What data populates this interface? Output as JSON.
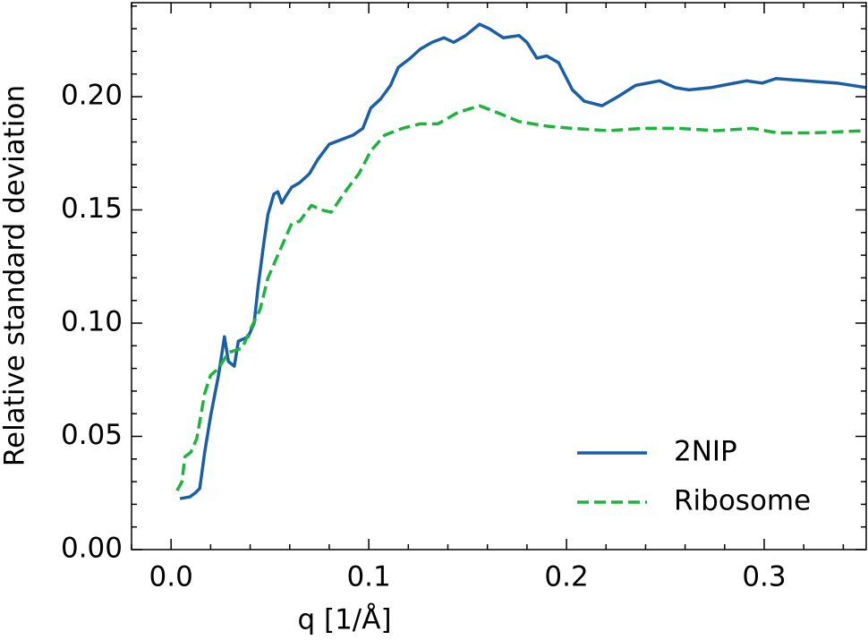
{
  "chart_data": {
    "type": "line",
    "xlabel": "q [1/Å]",
    "ylabel": "Relative standard deviation",
    "xlim": [
      -0.02,
      0.3516
    ],
    "ylim": [
      0,
      0.2415
    ],
    "xticks": [
      {
        "value": 0,
        "label": "0.0"
      },
      0.1,
      0.2,
      0.3
    ],
    "yticks": [
      {
        "value": 0,
        "label": "0.00"
      },
      0.05,
      {
        "value": 0.1,
        "label": "0.10"
      },
      0.15,
      {
        "value": 0.2,
        "label": "0.20"
      }
    ],
    "xminorticks": [
      -0.02,
      0.02,
      0.04,
      0.06,
      0.08,
      0.12,
      0.14,
      0.16,
      0.18,
      0.22,
      0.24,
      0.26,
      0.28,
      0.32,
      0.34
    ],
    "yminorticks": [
      0.01,
      0.02,
      0.03,
      0.04,
      0.06,
      0.07,
      0.08,
      0.09,
      0.11,
      0.12,
      0.13,
      0.14,
      0.16,
      0.17,
      0.18,
      0.19,
      0.21,
      0.22,
      0.23,
      0.24
    ],
    "legend": "lower right",
    "series": [
      {
        "name": "2NIP",
        "color": "#1a5ea8",
        "dash": "solid",
        "x": [
          0.0045,
          0.0095,
          0.0122,
          0.0145,
          0.017,
          0.02,
          0.024,
          0.027,
          0.029,
          0.032,
          0.034,
          0.039,
          0.042,
          0.044,
          0.047,
          0.049,
          0.052,
          0.054,
          0.056,
          0.058,
          0.061,
          0.065,
          0.07,
          0.074,
          0.08,
          0.086,
          0.092,
          0.097,
          0.101,
          0.106,
          0.111,
          0.115,
          0.121,
          0.126,
          0.132,
          0.138,
          0.143,
          0.149,
          0.156,
          0.161,
          0.168,
          0.176,
          0.18,
          0.185,
          0.19,
          0.196,
          0.203,
          0.209,
          0.218,
          0.226,
          0.235,
          0.247,
          0.255,
          0.262,
          0.273,
          0.279,
          0.291,
          0.299,
          0.306,
          0.321,
          0.337,
          0.3516
        ],
        "values": [
          0.0225,
          0.0233,
          0.025,
          0.027,
          0.043,
          0.059,
          0.077,
          0.094,
          0.083,
          0.081,
          0.092,
          0.094,
          0.1,
          0.116,
          0.136,
          0.148,
          0.157,
          0.158,
          0.153,
          0.156,
          0.16,
          0.162,
          0.166,
          0.172,
          0.179,
          0.181,
          0.183,
          0.186,
          0.195,
          0.199,
          0.205,
          0.213,
          0.217,
          0.221,
          0.224,
          0.226,
          0.224,
          0.227,
          0.232,
          0.23,
          0.226,
          0.227,
          0.224,
          0.217,
          0.218,
          0.215,
          0.203,
          0.198,
          0.196,
          0.2,
          0.205,
          0.207,
          0.204,
          0.203,
          0.204,
          0.205,
          0.207,
          0.206,
          0.208,
          0.207,
          0.206,
          0.204
        ]
      },
      {
        "name": "Ribosome",
        "color": "#1db33f",
        "dash": "dashed",
        "x": [
          0.003,
          0.0055,
          0.007,
          0.01,
          0.013,
          0.017,
          0.02,
          0.024,
          0.029,
          0.036,
          0.04,
          0.045,
          0.049,
          0.052,
          0.057,
          0.061,
          0.065,
          0.071,
          0.076,
          0.081,
          0.088,
          0.095,
          0.101,
          0.108,
          0.117,
          0.126,
          0.135,
          0.145,
          0.156,
          0.165,
          0.176,
          0.19,
          0.203,
          0.221,
          0.239,
          0.257,
          0.276,
          0.294,
          0.307,
          0.325,
          0.3516
        ],
        "values": [
          0.026,
          0.03,
          0.041,
          0.043,
          0.049,
          0.069,
          0.077,
          0.08,
          0.087,
          0.089,
          0.097,
          0.106,
          0.12,
          0.126,
          0.136,
          0.144,
          0.145,
          0.152,
          0.15,
          0.149,
          0.158,
          0.166,
          0.176,
          0.183,
          0.186,
          0.188,
          0.188,
          0.193,
          0.196,
          0.193,
          0.189,
          0.187,
          0.186,
          0.185,
          0.186,
          0.186,
          0.185,
          0.186,
          0.184,
          0.184,
          0.185
        ]
      }
    ]
  }
}
